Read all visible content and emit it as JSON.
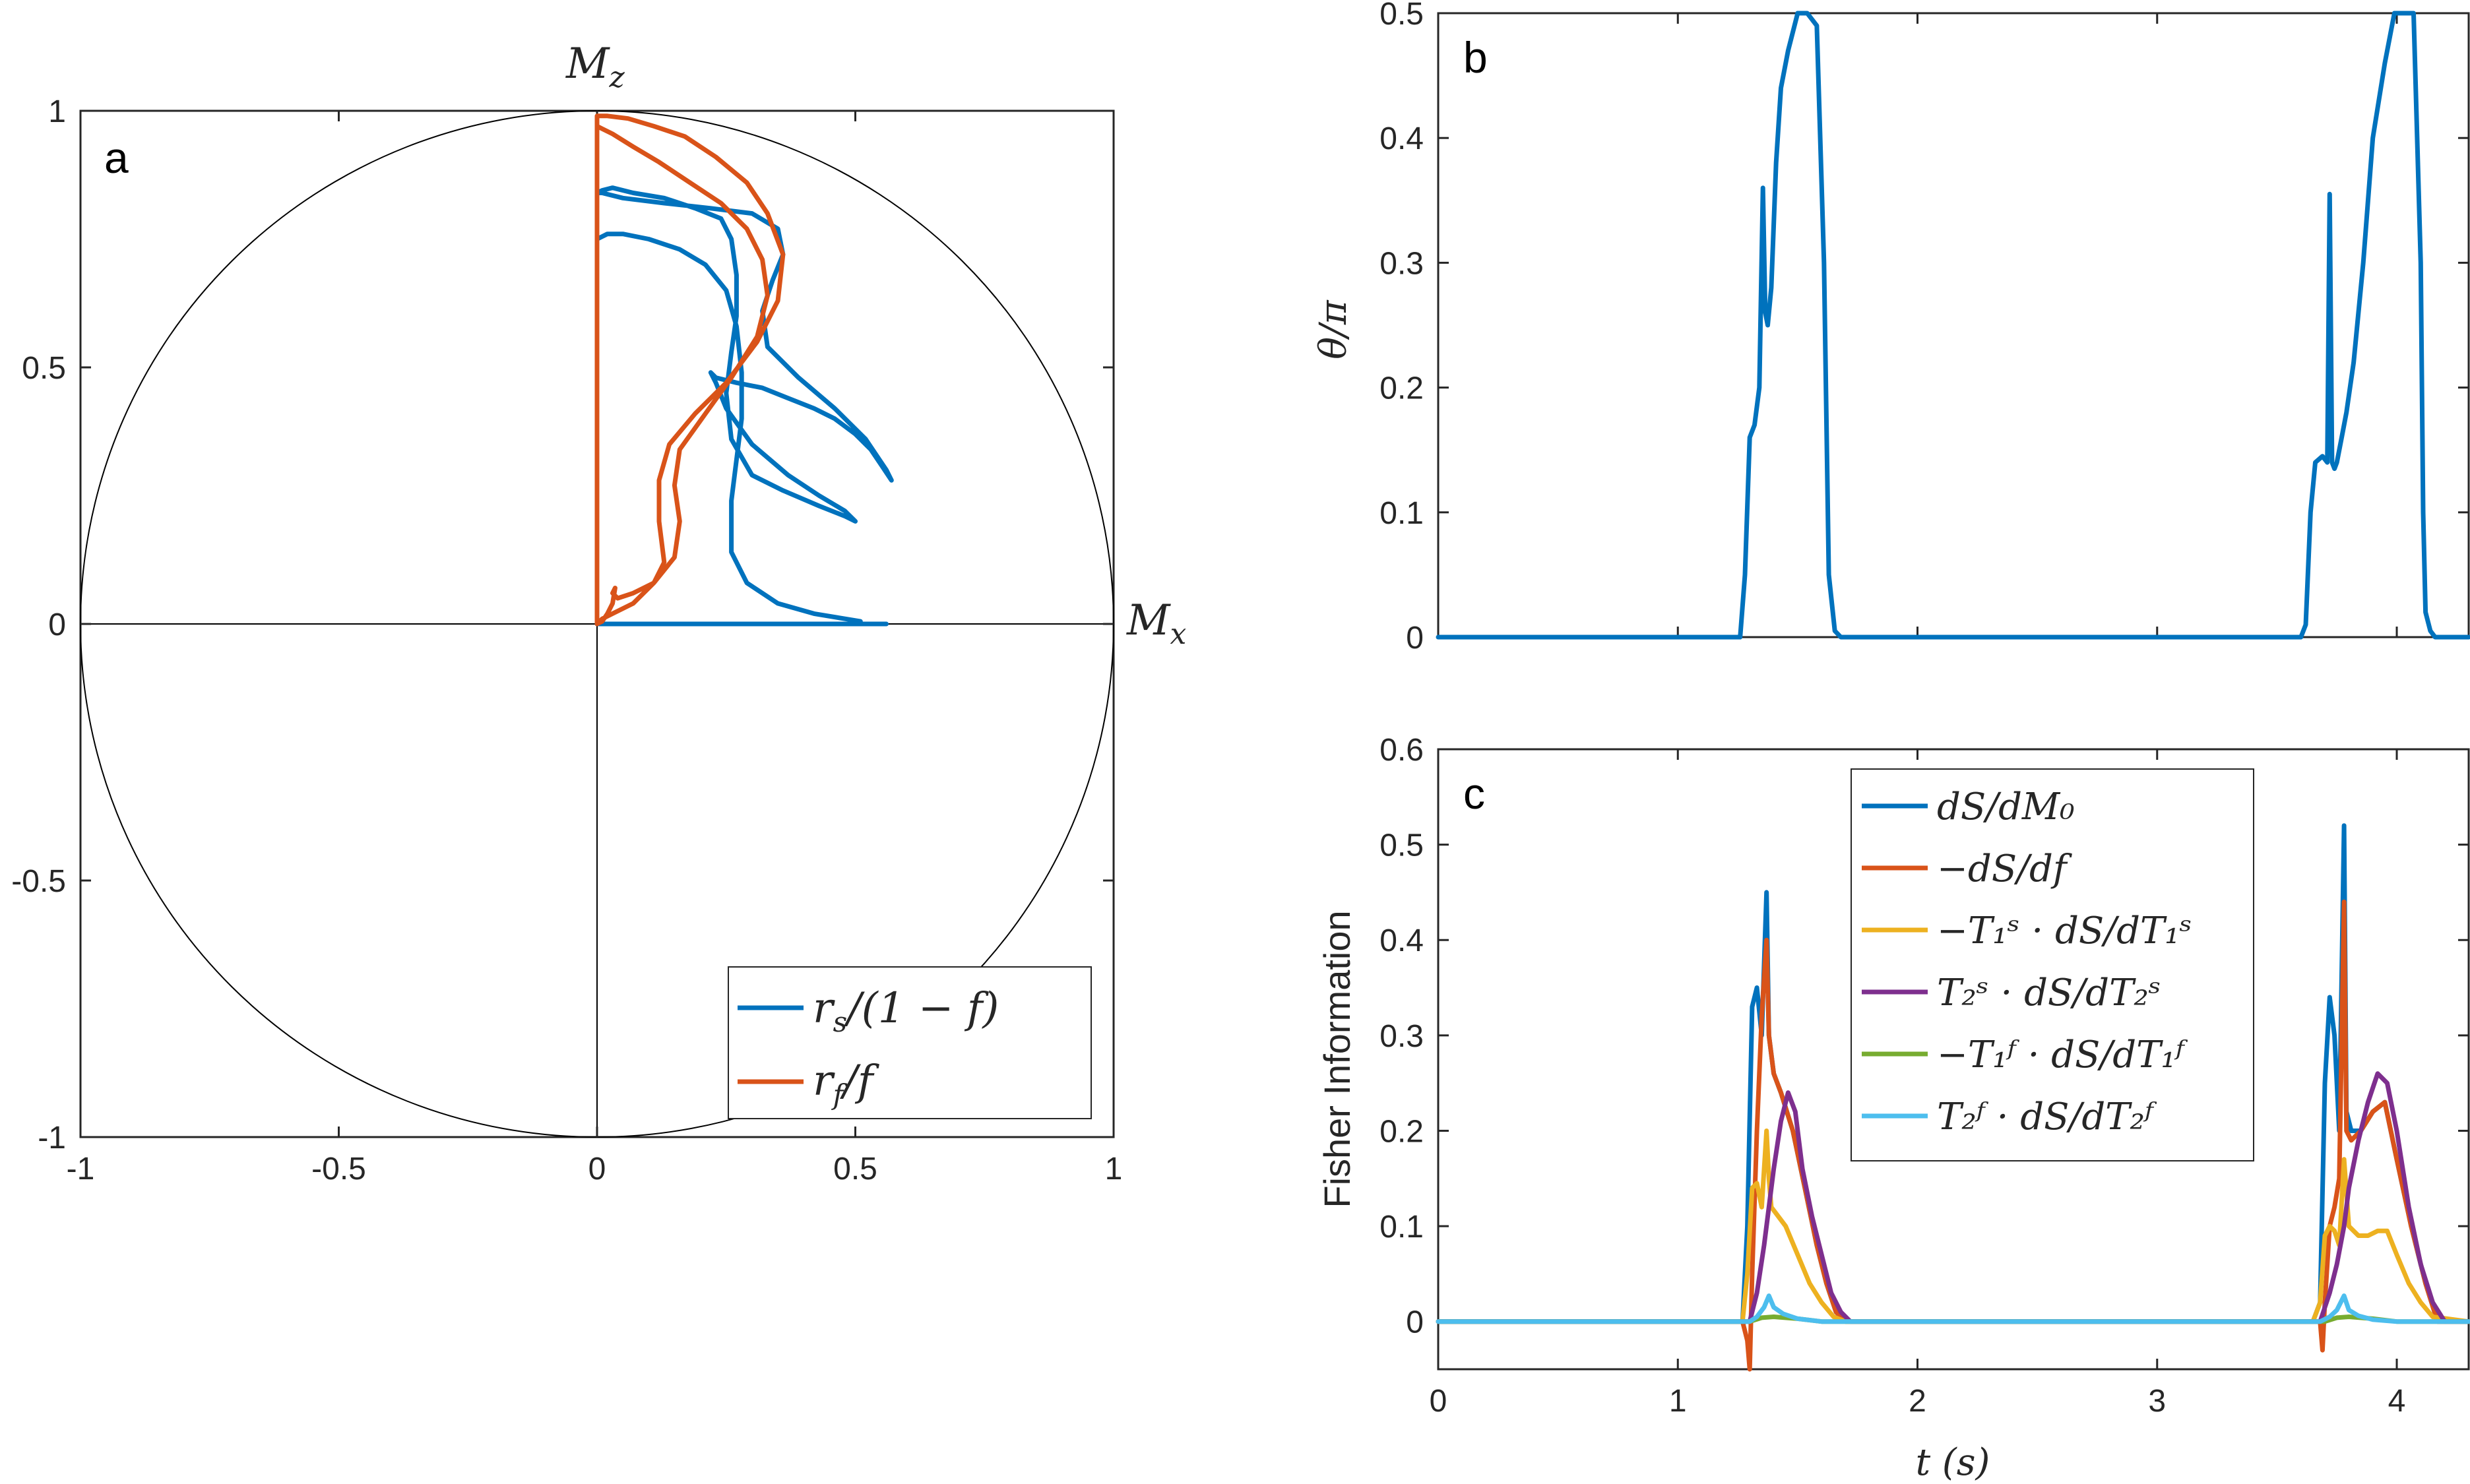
{
  "colors": {
    "blue": "#0072BD",
    "orange": "#D95319",
    "yellow": "#EDB120",
    "purple": "#7E2F8E",
    "green": "#77AC30",
    "cyan": "#4DBEEE",
    "axis": "#262626"
  },
  "chart_data": [
    {
      "id": "a",
      "type": "line",
      "panel_label": "a",
      "xlabel": "M",
      "xlabel_sub": "x",
      "ylabel": "M",
      "ylabel_sub": "z",
      "xlim": [
        -1,
        1
      ],
      "ylim": [
        -1,
        1
      ],
      "xticks": [
        -1,
        -0.5,
        0,
        0.5,
        1
      ],
      "yticks": [
        -1,
        -0.5,
        0,
        0.5,
        1
      ],
      "xtick_labels": [
        "-1",
        "-0.5",
        "0",
        "0.5",
        "1"
      ],
      "ytick_labels": [
        "-1",
        "-0.5",
        "0",
        "0.5",
        "1"
      ],
      "unit_circle": true,
      "legend_position": "bottom-right",
      "series": [
        {
          "name": "r_s/(1-f)",
          "legend_main": "r",
          "legend_sub": "s",
          "legend_rest": "/(1 − f)",
          "color": "blue",
          "x": [
            0,
            0,
            0,
            0,
            0.01,
            0.03,
            0.07,
            0.13,
            0.19,
            0.24,
            0.26,
            0.27,
            0.27,
            0.26,
            0.25,
            0.26,
            0.3,
            0.36,
            0.43,
            0.48,
            0.5,
            0.48,
            0.43,
            0.37,
            0.3,
            0.25,
            0.23,
            0.22,
            0.23,
            0.27,
            0.32,
            0.37,
            0.42,
            0.46,
            0.5,
            0.53,
            0.55,
            0.57,
            0.56,
            0.52,
            0.46,
            0.39,
            0.33,
            0.32,
            0.34,
            0.36,
            0.35,
            0.3,
            0.22,
            0.13,
            0.05,
            0.01,
            0,
            0,
            0,
            0.01,
            0.02,
            0.05,
            0.1,
            0.16,
            0.21,
            0.25,
            0.27,
            0.28,
            0.28,
            0.27,
            0.26,
            0.26,
            0.29,
            0.35,
            0.42,
            0.48,
            0.51,
            0.49,
            0.44,
            0.38,
            0.31,
            0.26,
            0.24,
            0.23,
            0.25,
            0.29,
            0.34,
            0.38,
            0.43,
            0.47,
            0.51,
            0.54,
            0.56,
            0.55,
            0.5,
            0.44,
            0.37,
            0.32,
            0.31,
            0.33,
            0.35,
            0.33,
            0.28,
            0.2,
            0.11,
            0.04,
            0
          ],
          "y": [
            0,
            0.4,
            0.84,
            0.84,
            0.845,
            0.85,
            0.84,
            0.83,
            0.81,
            0.79,
            0.75,
            0.68,
            0.6,
            0.53,
            0.45,
            0.36,
            0.29,
            0.26,
            0.23,
            0.21,
            0.2,
            0.22,
            0.25,
            0.29,
            0.35,
            0.42,
            0.47,
            0.49,
            0.48,
            0.47,
            0.46,
            0.44,
            0.42,
            0.4,
            0.37,
            0.34,
            0.31,
            0.28,
            0.3,
            0.36,
            0.42,
            0.48,
            0.54,
            0.61,
            0.67,
            0.72,
            0.77,
            0.8,
            0.81,
            0.82,
            0.83,
            0.84,
            0.84,
            0.4,
            0.75,
            0.755,
            0.76,
            0.76,
            0.75,
            0.73,
            0.7,
            0.65,
            0.58,
            0.49,
            0.4,
            0.32,
            0.24,
            0.14,
            0.08,
            0.04,
            0.02,
            0.01,
            0.005,
            0,
            0,
            0,
            0,
            0,
            0,
            0,
            0,
            0,
            0,
            0,
            0,
            0,
            0,
            0,
            0,
            0,
            0,
            0,
            0,
            0,
            0,
            0,
            0,
            0,
            0,
            0,
            0,
            0,
            0
          ],
          "note": "trajectory in Mx-Mz plane"
        },
        {
          "name": "r_f/f",
          "legend_main": "r",
          "legend_sub": "f",
          "legend_rest": "/f",
          "color": "orange",
          "x": [
            0,
            0,
            0,
            0.02,
            0.06,
            0.11,
            0.17,
            0.23,
            0.29,
            0.33,
            0.36,
            0.35,
            0.31,
            0.25,
            0.19,
            0.14,
            0.12,
            0.12,
            0.13,
            0.11,
            0.07,
            0.04,
            0.03,
            0.035,
            0.03,
            0.02,
            0.01,
            0,
            0,
            0,
            0,
            0.01,
            0.03,
            0.07,
            0.12,
            0.18,
            0.24,
            0.29,
            0.32,
            0.33,
            0.31,
            0.26,
            0.21,
            0.16,
            0.15,
            0.16,
            0.15,
            0.11,
            0.07,
            0.03,
            0.01,
            0
          ],
          "y": [
            0,
            0.5,
            0.99,
            0.99,
            0.985,
            0.97,
            0.95,
            0.91,
            0.86,
            0.8,
            0.72,
            0.63,
            0.55,
            0.47,
            0.41,
            0.35,
            0.28,
            0.2,
            0.12,
            0.08,
            0.06,
            0.05,
            0.06,
            0.07,
            0.04,
            0.02,
            0.005,
            0,
            0.5,
            0.97,
            0.97,
            0.965,
            0.955,
            0.93,
            0.9,
            0.86,
            0.82,
            0.77,
            0.71,
            0.64,
            0.56,
            0.48,
            0.41,
            0.34,
            0.27,
            0.2,
            0.13,
            0.08,
            0.04,
            0.02,
            0.01,
            0
          ]
        }
      ]
    },
    {
      "id": "b",
      "type": "line",
      "panel_label": "b",
      "ylabel": "θ/π",
      "xlim": [
        0,
        4.3
      ],
      "ylim": [
        0,
        0.5
      ],
      "xticks": [
        0,
        1,
        2,
        3,
        4
      ],
      "yticks": [
        0,
        0.1,
        0.2,
        0.3,
        0.4,
        0.5
      ],
      "ytick_labels": [
        "0",
        "0.1",
        "0.2",
        "0.3",
        "0.4",
        "0.5"
      ],
      "series": [
        {
          "name": "theta/pi",
          "color": "blue",
          "x": [
            0,
            1.26,
            1.28,
            1.3,
            1.32,
            1.34,
            1.355,
            1.365,
            1.375,
            1.39,
            1.41,
            1.43,
            1.46,
            1.5,
            1.54,
            1.58,
            1.61,
            1.63,
            1.655,
            1.68,
            1.71,
            1.75,
            3.6,
            3.62,
            3.64,
            3.66,
            3.69,
            3.71,
            3.72,
            3.73,
            3.74,
            3.75,
            3.77,
            3.79,
            3.82,
            3.86,
            3.9,
            3.95,
            3.99,
            4.03,
            4.07,
            4.1,
            4.11,
            4.12,
            4.14,
            4.16,
            4.3
          ],
          "y": [
            0,
            0,
            0.05,
            0.16,
            0.17,
            0.2,
            0.36,
            0.26,
            0.25,
            0.28,
            0.38,
            0.44,
            0.47,
            0.5,
            0.5,
            0.49,
            0.3,
            0.05,
            0.005,
            0,
            0,
            0,
            0,
            0.01,
            0.1,
            0.14,
            0.145,
            0.14,
            0.355,
            0.14,
            0.135,
            0.14,
            0.16,
            0.18,
            0.22,
            0.3,
            0.4,
            0.46,
            0.5,
            0.5,
            0.5,
            0.3,
            0.1,
            0.02,
            0.005,
            0,
            0
          ]
        }
      ]
    },
    {
      "id": "c",
      "type": "line",
      "panel_label": "c",
      "xlabel": "t (s)",
      "ylabel": "Fisher Information",
      "xlim": [
        0,
        4.3
      ],
      "ylim": [
        -0.05,
        0.6
      ],
      "xticks": [
        0,
        1,
        2,
        3,
        4
      ],
      "xtick_labels": [
        "0",
        "1",
        "2",
        "3",
        "4"
      ],
      "yticks": [
        0,
        0.1,
        0.2,
        0.3,
        0.4,
        0.5,
        0.6
      ],
      "ytick_labels": [
        "0",
        "0.1",
        "0.2",
        "0.3",
        "0.4",
        "0.5",
        "0.6"
      ],
      "legend_position": "top-center",
      "series": [
        {
          "name": "dS/dM0",
          "legend_text": "dS/dM₀",
          "color": "blue",
          "x": [
            0,
            1.27,
            1.29,
            1.31,
            1.33,
            1.35,
            1.37,
            1.38,
            1.4,
            1.43,
            1.48,
            1.53,
            1.58,
            1.62,
            1.66,
            1.7,
            3.65,
            3.68,
            3.7,
            3.72,
            3.74,
            3.76,
            3.78,
            3.79,
            3.81,
            3.85,
            3.9,
            3.95,
            4.0,
            4.06,
            4.12,
            4.17,
            4.3
          ],
          "y": [
            0,
            0,
            0.1,
            0.33,
            0.35,
            0.3,
            0.45,
            0.3,
            0.26,
            0.24,
            0.2,
            0.14,
            0.08,
            0.04,
            0.01,
            0,
            0,
            0.02,
            0.25,
            0.34,
            0.3,
            0.2,
            0.52,
            0.22,
            0.2,
            0.2,
            0.22,
            0.23,
            0.17,
            0.1,
            0.04,
            0,
            0
          ]
        },
        {
          "name": "-dS/df",
          "legend_text": "−dS/df",
          "color": "orange",
          "x": [
            0,
            1.27,
            1.29,
            1.3,
            1.31,
            1.33,
            1.35,
            1.37,
            1.38,
            1.4,
            1.43,
            1.48,
            1.53,
            1.58,
            1.62,
            1.66,
            1.7,
            3.65,
            3.68,
            3.69,
            3.7,
            3.72,
            3.74,
            3.76,
            3.78,
            3.79,
            3.81,
            3.85,
            3.9,
            3.95,
            4.0,
            4.06,
            4.12,
            4.17,
            4.3
          ],
          "y": [
            0,
            0,
            -0.02,
            -0.05,
            0.05,
            0.2,
            0.32,
            0.4,
            0.3,
            0.26,
            0.24,
            0.2,
            0.14,
            0.08,
            0.04,
            0.01,
            0,
            0,
            0,
            -0.03,
            0.02,
            0.1,
            0.12,
            0.15,
            0.44,
            0.2,
            0.19,
            0.2,
            0.22,
            0.23,
            0.17,
            0.1,
            0.04,
            0,
            0
          ]
        },
        {
          "name": "-T1s*dS/dT1s",
          "legend_text": "−T₁ˢ · dS/dT₁ˢ",
          "color": "yellow",
          "x": [
            0,
            1.27,
            1.29,
            1.31,
            1.33,
            1.35,
            1.37,
            1.38,
            1.39,
            1.42,
            1.45,
            1.5,
            1.55,
            1.6,
            1.65,
            1.7,
            3.65,
            3.68,
            3.7,
            3.72,
            3.74,
            3.76,
            3.78,
            3.8,
            3.84,
            3.88,
            3.92,
            3.96,
            4.0,
            4.05,
            4.1,
            4.15,
            4.3
          ],
          "y": [
            0,
            0,
            0.05,
            0.14,
            0.145,
            0.12,
            0.2,
            0.15,
            0.12,
            0.11,
            0.1,
            0.07,
            0.04,
            0.02,
            0.005,
            0,
            0,
            0.02,
            0.09,
            0.1,
            0.095,
            0.08,
            0.17,
            0.1,
            0.09,
            0.09,
            0.095,
            0.095,
            0.07,
            0.04,
            0.02,
            0.005,
            0
          ]
        },
        {
          "name": "T2s*dS/dT2s",
          "legend_text": "T₂ˢ · dS/dT₂ˢ",
          "color": "purple",
          "x": [
            0,
            1.3,
            1.33,
            1.36,
            1.38,
            1.4,
            1.43,
            1.46,
            1.49,
            1.52,
            1.56,
            1.6,
            1.64,
            1.68,
            1.72,
            3.68,
            3.72,
            3.75,
            3.78,
            3.8,
            3.84,
            3.88,
            3.92,
            3.96,
            4.0,
            4.05,
            4.1,
            4.15,
            4.2,
            4.3
          ],
          "y": [
            0,
            0,
            0.03,
            0.08,
            0.12,
            0.16,
            0.21,
            0.24,
            0.22,
            0.16,
            0.11,
            0.07,
            0.03,
            0.01,
            0,
            0,
            0.03,
            0.06,
            0.1,
            0.14,
            0.19,
            0.23,
            0.26,
            0.25,
            0.2,
            0.12,
            0.06,
            0.02,
            0,
            0
          ]
        },
        {
          "name": "-T1f*dS/dT1f",
          "legend_text": "−T₁ᶠ · dS/dT₁ᶠ",
          "color": "green",
          "x": [
            0,
            1.3,
            1.35,
            1.4,
            1.5,
            1.6,
            3.7,
            3.75,
            3.8,
            3.9,
            4.0,
            4.3
          ],
          "y": [
            0,
            0,
            0.004,
            0.005,
            0.003,
            0,
            0,
            0.004,
            0.005,
            0.003,
            0,
            0
          ]
        },
        {
          "name": "T2f*dS/dT2f",
          "legend_text": "T₂ᶠ · dS/dT₂ᶠ",
          "color": "cyan",
          "x": [
            0,
            1.3,
            1.33,
            1.36,
            1.38,
            1.4,
            1.44,
            1.5,
            1.6,
            3.68,
            3.72,
            3.75,
            3.78,
            3.8,
            3.84,
            3.9,
            4.0,
            4.3
          ],
          "y": [
            0,
            0,
            0.005,
            0.015,
            0.027,
            0.015,
            0.008,
            0.003,
            0,
            0,
            0.005,
            0.012,
            0.027,
            0.012,
            0.006,
            0.002,
            0,
            0
          ]
        }
      ]
    }
  ]
}
